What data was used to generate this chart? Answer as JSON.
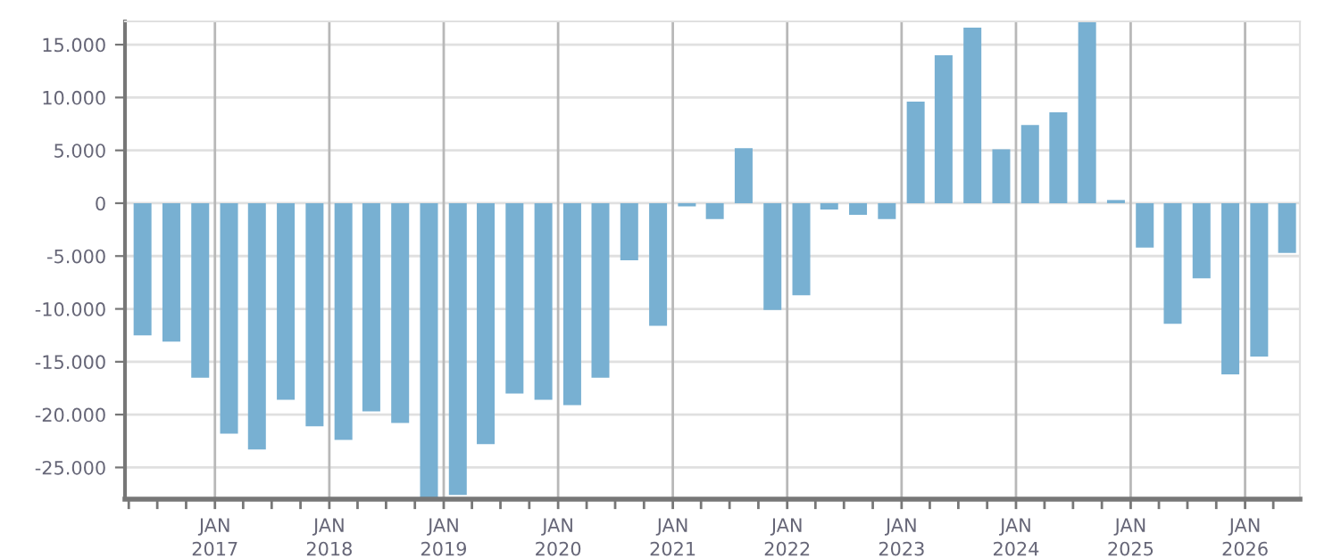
{
  "chart_data": {
    "type": "bar",
    "color": "#78b0d2",
    "x": [
      "2016-05-15",
      "2016-08-15",
      "2016-11-15",
      "2017-02-15",
      "2017-05-15",
      "2017-08-15",
      "2017-11-15",
      "2018-02-15",
      "2018-05-15",
      "2018-08-15",
      "2018-11-15",
      "2019-02-15",
      "2019-05-15",
      "2019-08-15",
      "2019-11-15",
      "2020-02-15",
      "2020-05-15",
      "2020-08-15",
      "2020-11-15",
      "2021-02-15",
      "2021-05-15",
      "2021-08-15",
      "2021-11-15",
      "2022-02-15",
      "2022-05-15",
      "2022-08-15",
      "2022-11-15",
      "2023-02-15",
      "2023-05-15",
      "2023-08-15",
      "2023-11-15",
      "2024-02-15",
      "2024-05-15",
      "2024-08-15",
      "2024-11-15",
      "2025-02-15",
      "2025-05-15",
      "2025-08-15",
      "2025-11-15",
      "2026-02-15",
      "2026-05-15"
    ],
    "values": [
      -12500,
      -13100,
      -16500,
      -21800,
      -23300,
      -18600,
      -21100,
      -22400,
      -19700,
      -20800,
      -28000,
      -27600,
      -22800,
      -18000,
      -18600,
      -19100,
      -16500,
      -5400,
      -11600,
      -300,
      -1500,
      5200,
      -10100,
      -8700,
      -600,
      -1100,
      -1500,
      9600,
      14000,
      16600,
      5100,
      7400,
      8600,
      17200,
      300,
      -4200,
      -11400,
      -7100,
      -16200,
      -14500,
      -4700
    ],
    "ylim": [
      -28000,
      17200
    ],
    "yticks": [
      {
        "value": -25000,
        "label": "-25.000"
      },
      {
        "value": -20000,
        "label": "-20.000"
      },
      {
        "value": -15000,
        "label": "-15.000"
      },
      {
        "value": -10000,
        "label": "-10.000"
      },
      {
        "value": -5000,
        "label": "-5.000"
      },
      0,
      {
        "value": 5000,
        "label": "5.000"
      },
      {
        "value": 10000,
        "label": "10.000"
      },
      {
        "value": 15000,
        "label": "15.000"
      }
    ],
    "xlim": [
      "2016-03-20",
      "2026-06-25"
    ],
    "xticks": [
      {
        "value": "2016-04-01",
        "label": null
      },
      {
        "value": "2016-07-01",
        "label": null
      },
      {
        "value": "2016-10-01",
        "label": null
      },
      {
        "value": "2017-01-01",
        "label": "JAN\n2017"
      },
      {
        "value": "2017-04-01",
        "label": null
      },
      {
        "value": "2017-07-01",
        "label": null
      },
      {
        "value": "2017-10-01",
        "label": null
      },
      {
        "value": "2018-01-01",
        "label": "JAN\n2018"
      },
      {
        "value": "2018-04-01",
        "label": null
      },
      {
        "value": "2018-07-01",
        "label": null
      },
      {
        "value": "2018-10-01",
        "label": null
      },
      {
        "value": "2019-01-01",
        "label": "JAN\n2019"
      },
      {
        "value": "2019-04-01",
        "label": null
      },
      {
        "value": "2019-07-01",
        "label": null
      },
      {
        "value": "2019-10-01",
        "label": null
      },
      {
        "value": "2020-01-01",
        "label": "JAN\n2020"
      },
      {
        "value": "2020-04-01",
        "label": null
      },
      {
        "value": "2020-07-01",
        "label": null
      },
      {
        "value": "2020-10-01",
        "label": null
      },
      {
        "value": "2021-01-01",
        "label": "JAN\n2021"
      },
      {
        "value": "2021-04-01",
        "label": null
      },
      {
        "value": "2021-07-01",
        "label": null
      },
      {
        "value": "2021-10-01",
        "label": null
      },
      {
        "value": "2022-01-01",
        "label": "JAN\n2022"
      },
      {
        "value": "2022-04-01",
        "label": null
      },
      {
        "value": "2022-07-01",
        "label": null
      },
      {
        "value": "2022-10-01",
        "label": null
      },
      {
        "value": "2023-01-01",
        "label": "JAN\n2023"
      },
      {
        "value": "2023-04-01",
        "label": null
      },
      {
        "value": "2023-07-01",
        "label": null
      },
      {
        "value": "2023-10-01",
        "label": null
      },
      {
        "value": "2024-01-01",
        "label": "JAN\n2024"
      },
      {
        "value": "2024-04-01",
        "label": null
      },
      {
        "value": "2024-07-01",
        "label": null
      },
      {
        "value": "2024-10-01",
        "label": null
      },
      {
        "value": "2025-01-01",
        "label": "JAN\n2025"
      },
      {
        "value": "2025-04-01",
        "label": null
      },
      {
        "value": "2025-07-01",
        "label": null
      },
      {
        "value": "2025-10-01",
        "label": null
      },
      {
        "value": "2026-01-01",
        "label": "JAN\n2026"
      },
      {
        "value": "2026-04-01",
        "label": null
      }
    ],
    "grid": true
  }
}
